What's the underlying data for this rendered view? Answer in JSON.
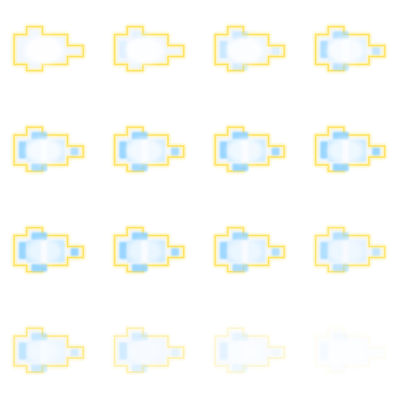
{
  "sprite_sheet": {
    "title": "",
    "grid": {
      "columns": 4,
      "rows": 4
    },
    "colors": {
      "outline_glow": "#fff3a8",
      "outline_core": "#ffe36a",
      "tile_fill": "#8fd2ff",
      "tile_fill_light": "#bfe6ff",
      "core_glow": "#ffffff",
      "halo": "#e8f1ff"
    },
    "frames": [
      {
        "index": 1,
        "outline": 1.0,
        "fill": 0.0,
        "core": 1.0,
        "tail": 1.0,
        "fade": 1.0
      },
      {
        "index": 2,
        "outline": 1.0,
        "fill": 0.15,
        "core": 0.95,
        "tail": 1.0,
        "fade": 1.0
      },
      {
        "index": 3,
        "outline": 1.0,
        "fill": 0.35,
        "core": 0.9,
        "tail": 1.0,
        "fade": 1.0
      },
      {
        "index": 4,
        "outline": 1.0,
        "fill": 0.55,
        "core": 0.85,
        "tail": 1.0,
        "fade": 1.0
      },
      {
        "index": 5,
        "outline": 1.0,
        "fill": 0.7,
        "core": 0.8,
        "tail": 1.0,
        "fade": 1.0
      },
      {
        "index": 6,
        "outline": 1.0,
        "fill": 0.78,
        "core": 0.78,
        "tail": 1.0,
        "fade": 1.0
      },
      {
        "index": 7,
        "outline": 1.0,
        "fill": 0.85,
        "core": 0.75,
        "tail": 1.0,
        "fade": 1.0
      },
      {
        "index": 8,
        "outline": 1.0,
        "fill": 0.9,
        "core": 0.7,
        "tail": 1.0,
        "fade": 1.0
      },
      {
        "index": 9,
        "outline": 1.0,
        "fill": 0.95,
        "core": 0.65,
        "tail": 1.0,
        "fade": 1.0
      },
      {
        "index": 10,
        "outline": 1.0,
        "fill": 0.85,
        "core": 0.6,
        "tail": 1.0,
        "fade": 1.0
      },
      {
        "index": 11,
        "outline": 0.95,
        "fill": 0.7,
        "core": 0.55,
        "tail": 1.0,
        "fade": 1.0
      },
      {
        "index": 12,
        "outline": 0.85,
        "fill": 0.55,
        "core": 0.5,
        "tail": 1.0,
        "fade": 1.0
      },
      {
        "index": 13,
        "outline": 0.7,
        "fill": 0.45,
        "core": 0.45,
        "tail": 1.0,
        "fade": 0.95
      },
      {
        "index": 14,
        "outline": 0.5,
        "fill": 0.35,
        "core": 0.4,
        "tail": 1.0,
        "fade": 0.85
      },
      {
        "index": 15,
        "outline": 0.3,
        "fill": 0.25,
        "core": 0.3,
        "tail": 1.0,
        "fade": 0.7
      },
      {
        "index": 16,
        "outline": 0.12,
        "fill": 0.15,
        "core": 0.2,
        "tail": 1.0,
        "fade": 0.45
      }
    ]
  }
}
